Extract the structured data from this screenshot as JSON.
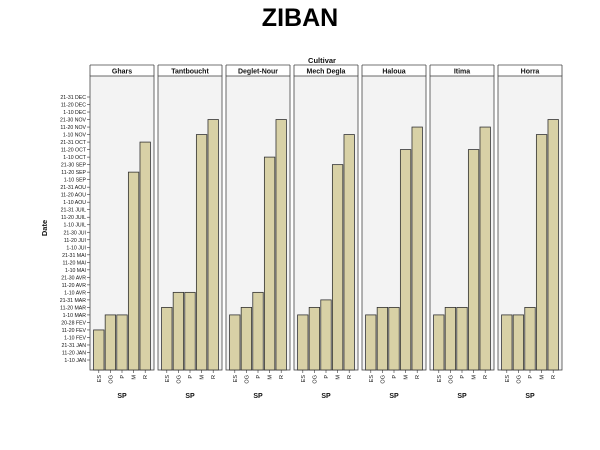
{
  "slide": {
    "title": "ZIBAN"
  },
  "chart_data": {
    "type": "bar",
    "title": "",
    "facet_label": "Cultivar",
    "xlabel": "SP",
    "ylabel": "Date",
    "categories": [
      "ES",
      "OG",
      "P",
      "M",
      "R"
    ],
    "y_categories": [
      "1-10 JAN",
      "11-20 JAN",
      "21-31 JAN",
      "1-10 FEV",
      "11-20 FEV",
      "20-28 FEV",
      "1-10 MAR",
      "11-20 MAR",
      "21-31 MAR",
      "1-10 AVR",
      "11-20 AVR",
      "21-30 AVR",
      "1-10 MAI",
      "11-20 MAI",
      "21-31 MAI",
      "1-10 JUI",
      "11-20 JUI",
      "21-30 JUI",
      "1-10 JUIL",
      "11-20 JUIL",
      "21-31 JUIL",
      "1-10 AOU",
      "11-20 AOU",
      "21-31 AOU",
      "1-10 SEP",
      "11-20 SEP",
      "21-30 SEP",
      "1-10 OCT",
      "11-20 OCT",
      "21-31 OCT",
      "1-10 NOV",
      "11-20 NOV",
      "21-30 NOV",
      "1-10 DEC",
      "11-20 DEC",
      "21-31 DEC"
    ],
    "panels": [
      {
        "name": "Ghars",
        "values": [
          "11-20 FEV",
          "1-10 MAR",
          "1-10 MAR",
          "11-20 SEP",
          "21-31 OCT"
        ]
      },
      {
        "name": "Tantboucht",
        "values": [
          "11-20 MAR",
          "1-10 AVR",
          "1-10 AVR",
          "1-10 NOV",
          "21-30 NOV"
        ]
      },
      {
        "name": "Deglet-Nour",
        "values": [
          "1-10 MAR",
          "11-20 MAR",
          "1-10 AVR",
          "1-10 OCT",
          "21-30 NOV"
        ]
      },
      {
        "name": "Mech Degla",
        "values": [
          "1-10 MAR",
          "11-20 MAR",
          "21-31 MAR",
          "21-30 SEP",
          "1-10 NOV"
        ]
      },
      {
        "name": "Haloua",
        "values": [
          "1-10 MAR",
          "11-20 MAR",
          "11-20 MAR",
          "11-20 OCT",
          "11-20 NOV"
        ]
      },
      {
        "name": "Itima",
        "values": [
          "1-10 MAR",
          "11-20 MAR",
          "11-20 MAR",
          "11-20 OCT",
          "11-20 NOV"
        ]
      },
      {
        "name": "Horra",
        "values": [
          "1-10 MAR",
          "1-10 MAR",
          "11-20 MAR",
          "1-10 NOV",
          "21-30 NOV"
        ]
      }
    ],
    "bar_color": "#d8d1a6",
    "bar_stroke": "#333333",
    "grid": false
  }
}
